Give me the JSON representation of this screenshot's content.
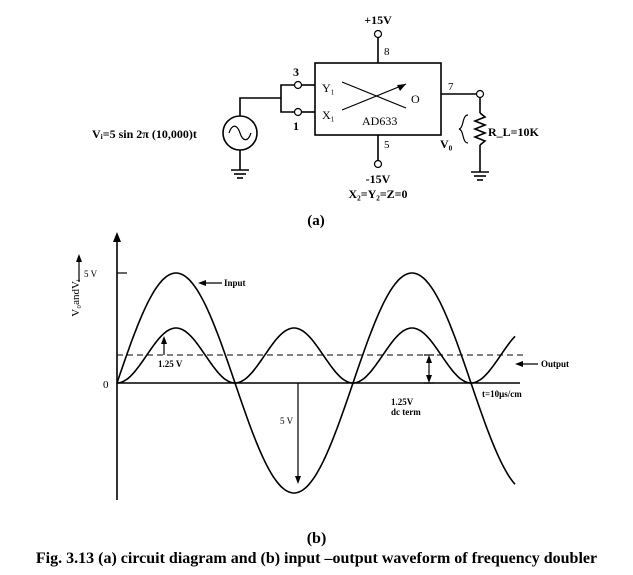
{
  "circuit": {
    "supply_pos": "+15V",
    "supply_neg": "-15V",
    "pin_vpos": "8",
    "pin_y1": "3",
    "pin_x1": "1",
    "pin_out": "7",
    "pin_vneg": "5",
    "y1_label": "Y₁",
    "x1_label": "X₁",
    "out_label": "O",
    "chip_name": "AD633",
    "input_label": "Vᵢ=5 sin 2π (10,000)t",
    "vo_label": "V₀",
    "load_label": "R_L=10K",
    "grounded_label": "X₂=Y₂=Z=0",
    "sub_caption": "(a)"
  },
  "waveform": {
    "y_axis_label": "V₀andVᵢ",
    "origin_label": "0",
    "peak_label": "5 V",
    "input_label": "Input",
    "output_label": "Output",
    "ripple_label": "1.25 V",
    "trough_label": "5 V",
    "dc_label_1": "1.25V",
    "dc_label_2": "dc term",
    "time_label": "t=10μs/cm",
    "sub_caption": "(b)"
  },
  "caption": "Fig. 3.13 (a) circuit diagram and (b) input –output waveform of frequency doubler"
}
